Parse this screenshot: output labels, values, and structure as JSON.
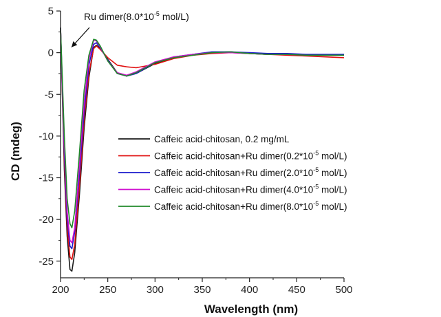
{
  "chart_data": {
    "type": "line",
    "title": "",
    "xlabel": "Wavelength (nm)",
    "ylabel": "CD (mdeg)",
    "xlim": [
      200,
      500
    ],
    "ylim": [
      -27,
      5
    ],
    "xticks": [
      200,
      250,
      300,
      350,
      400,
      450,
      500
    ],
    "yticks": [
      5,
      0,
      -5,
      -10,
      -15,
      -20,
      -25
    ],
    "grid": false,
    "legend_position": "center-right",
    "annotation": {
      "prefix": "Ru dimer(8.0*10",
      "superscript": "-5",
      "suffix": " mol/L)",
      "arrow_to": [
        200,
        0
      ]
    },
    "x": [
      200,
      204,
      207,
      210,
      212,
      215,
      220,
      225,
      230,
      235,
      238,
      242,
      250,
      260,
      270,
      280,
      300,
      320,
      340,
      360,
      380,
      400,
      420,
      440,
      460,
      480,
      500
    ],
    "series": [
      {
        "label_prefix": "Caffeic acid-chitosan, 0.2 mg/mL",
        "label_sup": "",
        "label_suffix": "",
        "color": "#1a1a1a",
        "values": [
          3,
          -14,
          -22,
          -26,
          -26.2,
          -24,
          -17,
          -9,
          -3,
          0.6,
          0.9,
          0.5,
          -0.8,
          -2.4,
          -2.8,
          -2.5,
          -1.3,
          -0.6,
          -0.2,
          0,
          0.1,
          -0.1,
          -0.2,
          -0.2,
          -0.3,
          -0.3,
          -0.3
        ]
      },
      {
        "label_prefix": "Caffeic acid-chitosan+Ru dimer(0.2*10",
        "label_sup": "-5",
        "label_suffix": " mol/L)",
        "color": "#e01010",
        "values": [
          3,
          -13,
          -21,
          -24.5,
          -24.8,
          -23,
          -16,
          -8,
          -2.5,
          0.5,
          0.8,
          0.4,
          -0.6,
          -1.5,
          -1.7,
          -1.8,
          -1.4,
          -0.7,
          -0.3,
          -0.1,
          0,
          -0.1,
          -0.2,
          -0.3,
          -0.4,
          -0.5,
          -0.6
        ]
      },
      {
        "label_prefix": "Caffeic acid-chitosan+Ru dimer(2.0*10",
        "label_sup": "-5",
        "label_suffix": " mol/L)",
        "color": "#1a1acc",
        "values": [
          3,
          -12,
          -20,
          -23.2,
          -23.5,
          -21.5,
          -14.5,
          -7,
          -1.5,
          1,
          1.2,
          0.6,
          -0.9,
          -2.5,
          -2.8,
          -2.5,
          -1.2,
          -0.5,
          -0.2,
          0.1,
          0.1,
          0,
          -0.1,
          -0.1,
          -0.2,
          -0.2,
          -0.2
        ]
      },
      {
        "label_prefix": "Caffeic acid-chitosan+Ru dimer(4.0*10",
        "label_sup": "-5",
        "label_suffix": " mol/L)",
        "color": "#d010d0",
        "values": [
          3,
          -11,
          -19,
          -22.5,
          -22.8,
          -21,
          -13.5,
          -6,
          -0.8,
          1.5,
          1.4,
          0.7,
          -1,
          -2.4,
          -2.7,
          -2.3,
          -1.1,
          -0.5,
          -0.2,
          0,
          0,
          -0.1,
          -0.2,
          -0.2,
          -0.3,
          -0.3,
          -0.3
        ]
      },
      {
        "label_prefix": "Caffeic acid-chitosan+Ru dimer(8.0*10",
        "label_sup": "-5",
        "label_suffix": " mol/L)",
        "color": "#1f8a2a",
        "values": [
          3,
          -10,
          -17.5,
          -20.5,
          -21,
          -19,
          -12,
          -4.5,
          -0.3,
          1.6,
          1.5,
          0.8,
          -1,
          -2.5,
          -2.8,
          -2.4,
          -1.2,
          -0.6,
          -0.3,
          0,
          0.1,
          -0.1,
          -0.2,
          -0.2,
          -0.3,
          -0.3,
          -0.3
        ]
      }
    ]
  }
}
